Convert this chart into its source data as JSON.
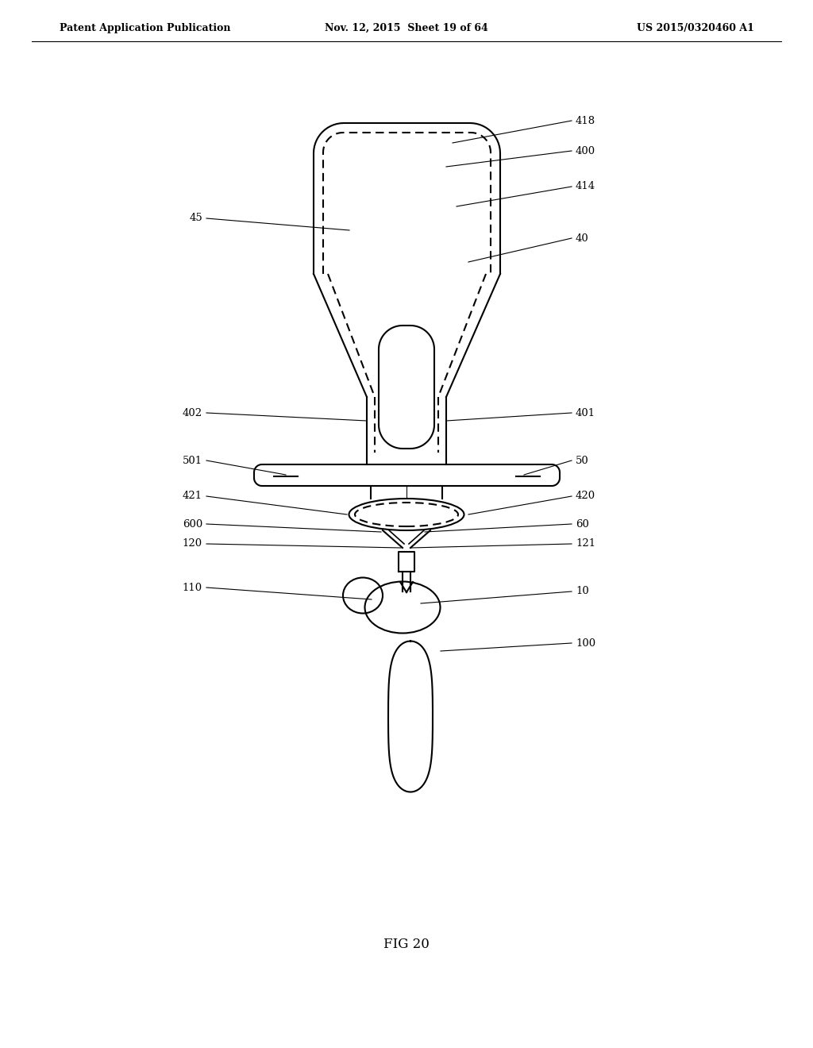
{
  "bg_color": "#ffffff",
  "line_color": "#000000",
  "header_left": "Patent Application Publication",
  "header_mid": "Nov. 12, 2015  Sheet 19 of 64",
  "header_right": "US 2015/0320460 A1",
  "fig_label": "FIG 20"
}
